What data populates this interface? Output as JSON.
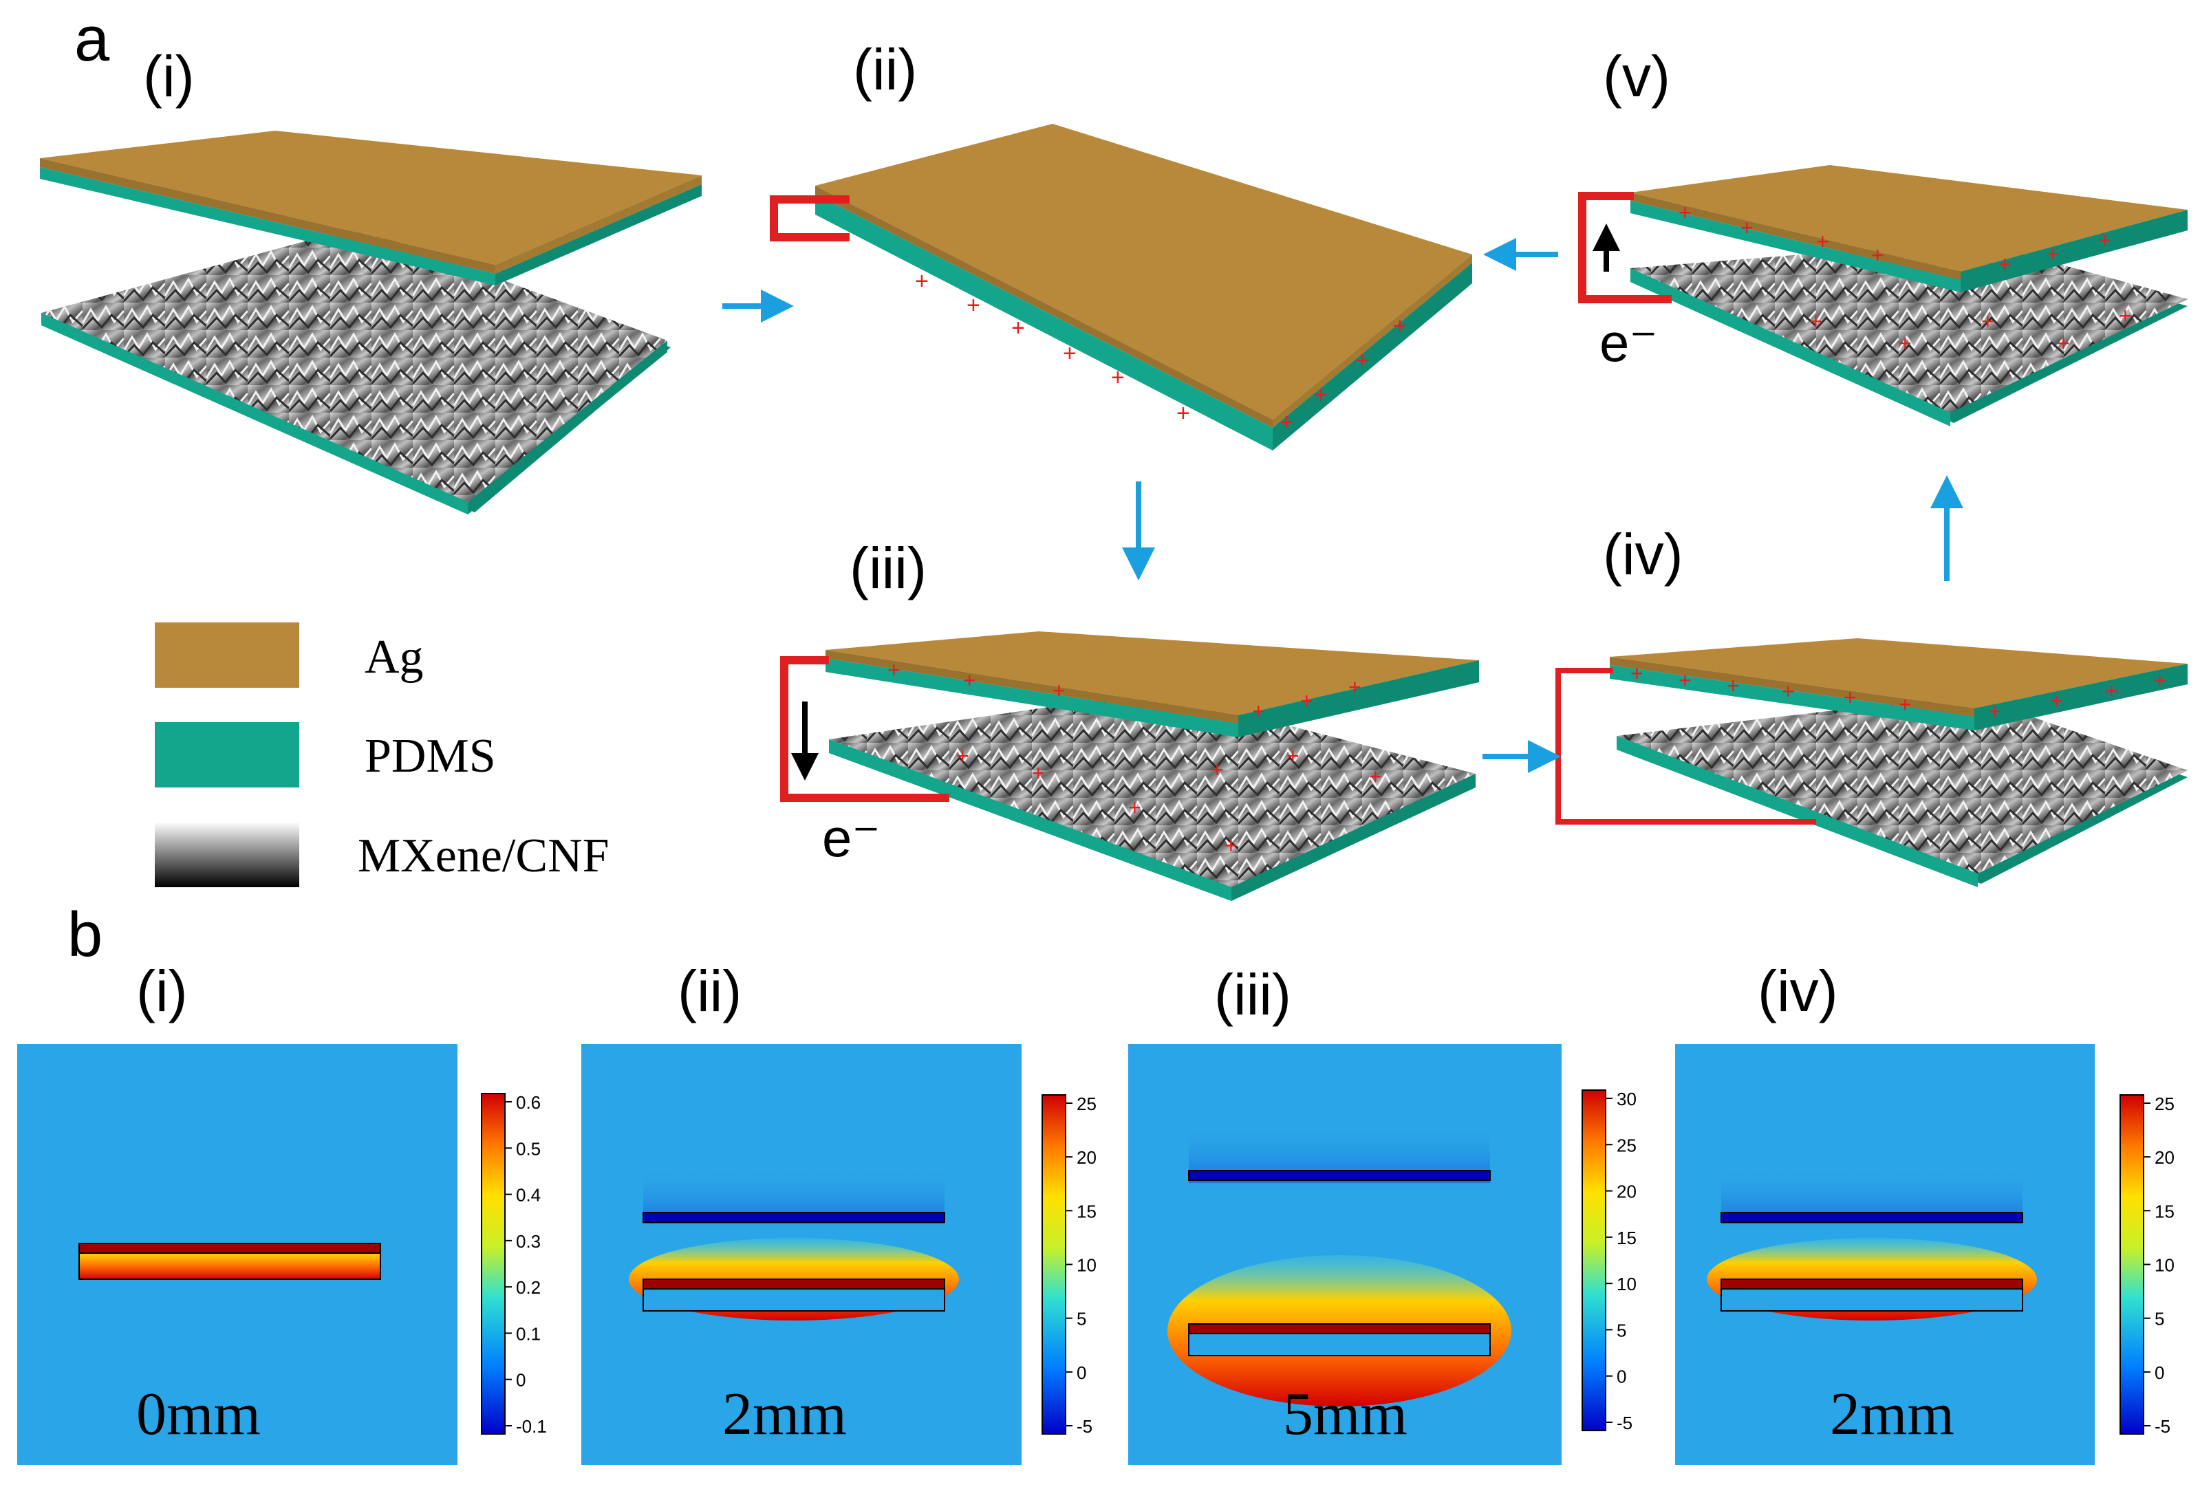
{
  "panel_a": {
    "label": "a",
    "steps": [
      {
        "id": "i",
        "label": "(i)"
      },
      {
        "id": "ii",
        "label": "(ii)"
      },
      {
        "id": "iii",
        "label": "(iii)"
      },
      {
        "id": "iv",
        "label": "(iv)"
      },
      {
        "id": "v",
        "label": "(v)"
      }
    ],
    "electron_label": "e⁻",
    "legend": [
      {
        "name": "Ag",
        "color": "#b8893a"
      },
      {
        "name": "PDMS",
        "color": "#13a68c"
      },
      {
        "name": "MXene/CNF",
        "color": "#606060"
      }
    ]
  },
  "panel_b": {
    "label": "b",
    "maps": [
      {
        "label": "(i)",
        "distance": "0mm",
        "ticks": [
          "0.6",
          "0.5",
          "0.4",
          "0.3",
          "0.2",
          "0.1",
          "0",
          "-0.1"
        ]
      },
      {
        "label": "(ii)",
        "distance": "2mm",
        "ticks": [
          "25",
          "20",
          "15",
          "10",
          "5",
          "0",
          "-5"
        ]
      },
      {
        "label": "(iii)",
        "distance": "5mm",
        "ticks": [
          "30",
          "25",
          "20",
          "15",
          "10",
          "5",
          "0",
          "-5"
        ]
      },
      {
        "label": "(iv)",
        "distance": "2mm",
        "ticks": [
          "25",
          "20",
          "15",
          "10",
          "5",
          "0",
          "-5"
        ]
      }
    ]
  },
  "colors": {
    "ag": "#b8893a",
    "ag_dark": "#9a7230",
    "pdms": "#13a68c",
    "pdms_dark": "#0e8a73",
    "arrow": "#1aa0e0",
    "wire": "#e02020",
    "field_bg": "#2aa5e8"
  }
}
